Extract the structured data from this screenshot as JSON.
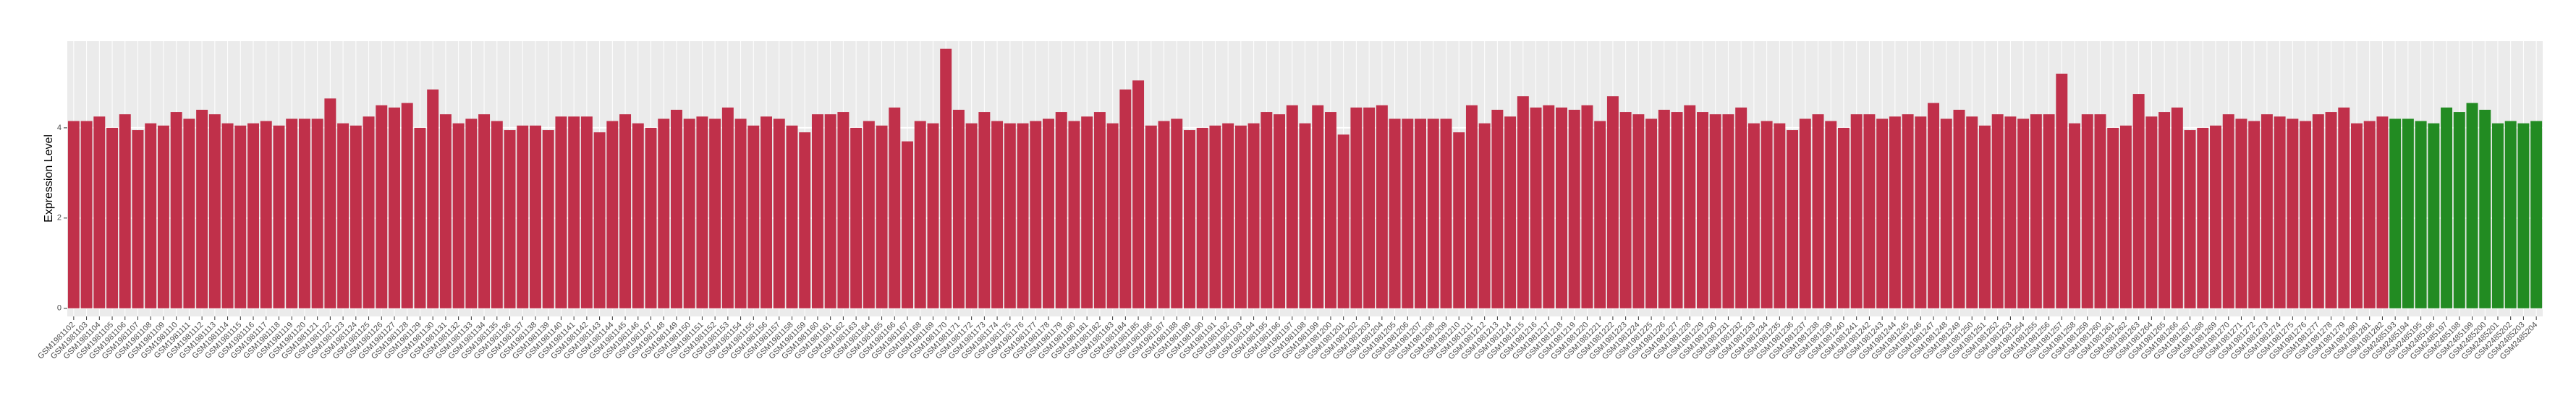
{
  "chart_data": {
    "type": "bar",
    "y_label": "Expression Level",
    "ylim": [
      -0.18,
      5.92
    ],
    "yticks": [
      0,
      2,
      4
    ],
    "grid": true,
    "groups": [
      {
        "color": "#c0304a",
        "categories": [
          "GSM1981102",
          "GSM1981103",
          "GSM1981104",
          "GSM1981105",
          "GSM1981106",
          "GSM1981107",
          "GSM1981108",
          "GSM1981109",
          "GSM1981110",
          "GSM1981111",
          "GSM1981112",
          "GSM1981113",
          "GSM1981114",
          "GSM1981115",
          "GSM1981116",
          "GSM1981117",
          "GSM1981118",
          "GSM1981119",
          "GSM1981120",
          "GSM1981121",
          "GSM1981122",
          "GSM1981123",
          "GSM1981124",
          "GSM1981125",
          "GSM1981126",
          "GSM1981127",
          "GSM1981128",
          "GSM1981129",
          "GSM1981130",
          "GSM1981131",
          "GSM1981132",
          "GSM1981133",
          "GSM1981134",
          "GSM1981135",
          "GSM1981136",
          "GSM1981137",
          "GSM1981138",
          "GSM1981139",
          "GSM1981140",
          "GSM1981141",
          "GSM1981142",
          "GSM1981143",
          "GSM1981144",
          "GSM1981145",
          "GSM1981146",
          "GSM1981147",
          "GSM1981148",
          "GSM1981149",
          "GSM1981150",
          "GSM1981151",
          "GSM1981152",
          "GSM1981153",
          "GSM1981154",
          "GSM1981155",
          "GSM1981156",
          "GSM1981157",
          "GSM1981158",
          "GSM1981159",
          "GSM1981160",
          "GSM1981161",
          "GSM1981162",
          "GSM1981163",
          "GSM1981164",
          "GSM1981165",
          "GSM1981166",
          "GSM1981167",
          "GSM1981168",
          "GSM1981169",
          "GSM1981170",
          "GSM1981171",
          "GSM1981172",
          "GSM1981173",
          "GSM1981174",
          "GSM1981175",
          "GSM1981176",
          "GSM1981177",
          "GSM1981178",
          "GSM1981179",
          "GSM1981180",
          "GSM1981181",
          "GSM1981182",
          "GSM1981183",
          "GSM1981184",
          "GSM1981185",
          "GSM1981186",
          "GSM1981187",
          "GSM1981188",
          "GSM1981189",
          "GSM1981190",
          "GSM1981191",
          "GSM1981192",
          "GSM1981193",
          "GSM1981194",
          "GSM1981195",
          "GSM1981196",
          "GSM1981197",
          "GSM1981198",
          "GSM1981199",
          "GSM1981200",
          "GSM1981201",
          "GSM1981202",
          "GSM1981203",
          "GSM1981204",
          "GSM1981205",
          "GSM1981206",
          "GSM1981207",
          "GSM1981208",
          "GSM1981209",
          "GSM1981210",
          "GSM1981211",
          "GSM1981212",
          "GSM1981213",
          "GSM1981214",
          "GSM1981215",
          "GSM1981216",
          "GSM1981217",
          "GSM1981218",
          "GSM1981219",
          "GSM1981220",
          "GSM1981221",
          "GSM1981222",
          "GSM1981223",
          "GSM1981224",
          "GSM1981225",
          "GSM1981226",
          "GSM1981227",
          "GSM1981228",
          "GSM1981229",
          "GSM1981230",
          "GSM1981231",
          "GSM1981232",
          "GSM1981233",
          "GSM1981234",
          "GSM1981235",
          "GSM1981236",
          "GSM1981237",
          "GSM1981238",
          "GSM1981239",
          "GSM1981240",
          "GSM1981241",
          "GSM1981242",
          "GSM1981243",
          "GSM1981244",
          "GSM1981245",
          "GSM1981246",
          "GSM1981247",
          "GSM1981248",
          "GSM1981249",
          "GSM1981250",
          "GSM1981251",
          "GSM1981252",
          "GSM1981253",
          "GSM1981254",
          "GSM1981255",
          "GSM1981256",
          "GSM1981257",
          "GSM1981258",
          "GSM1981259",
          "GSM1981260",
          "GSM1981261",
          "GSM1981262",
          "GSM1981263",
          "GSM1981264",
          "GSM1981265",
          "GSM1981266",
          "GSM1981267",
          "GSM1981268",
          "GSM1981269",
          "GSM1981270",
          "GSM1981271",
          "GSM1981272",
          "GSM1981273",
          "GSM1981274",
          "GSM1981275",
          "GSM1981276",
          "GSM1981277",
          "GSM1981278",
          "GSM1981279",
          "GSM1981280",
          "GSM1981281",
          "GSM1981282"
        ],
        "values": [
          4.15,
          4.15,
          4.25,
          4.0,
          4.3,
          3.95,
          4.1,
          4.05,
          4.35,
          4.2,
          4.4,
          4.3,
          4.1,
          4.05,
          4.1,
          4.15,
          4.05,
          4.2,
          4.2,
          4.2,
          4.65,
          4.1,
          4.05,
          4.25,
          4.5,
          4.45,
          4.55,
          4.0,
          4.85,
          4.3,
          4.1,
          4.2,
          4.3,
          4.15,
          3.95,
          4.05,
          4.05,
          3.95,
          4.25,
          4.25,
          4.25,
          3.9,
          4.15,
          4.3,
          4.1,
          4.0,
          4.2,
          4.4,
          4.2,
          4.25,
          4.2,
          4.45,
          4.2,
          4.05,
          4.25,
          4.2,
          4.05,
          3.9,
          4.3,
          4.3,
          4.35,
          4.0,
          4.15,
          4.05,
          4.45,
          3.7,
          4.15,
          4.1,
          5.75,
          4.4,
          4.1,
          4.35,
          4.15,
          4.1,
          4.1,
          4.15,
          4.2,
          4.35,
          4.15,
          4.25,
          4.35,
          4.1,
          4.85,
          5.05,
          4.05,
          4.15,
          4.2,
          3.95,
          4.0,
          4.05,
          4.1,
          4.05,
          4.1,
          4.35,
          4.3,
          4.5,
          4.1,
          4.5,
          4.35,
          3.85,
          4.45,
          4.45,
          4.5,
          4.2,
          4.2,
          4.2,
          4.2,
          4.2,
          3.9,
          4.5,
          4.1,
          4.4,
          4.25,
          4.7,
          4.45,
          4.5,
          4.45,
          4.4,
          4.5,
          4.15,
          4.7,
          4.35,
          4.3,
          4.2,
          4.4,
          4.35,
          4.5,
          4.35,
          4.3,
          4.3,
          4.45,
          4.1,
          4.15,
          4.1,
          3.95,
          4.2,
          4.3,
          4.15,
          4.0,
          4.3,
          4.3,
          4.2,
          4.25,
          4.3,
          4.25,
          4.55,
          4.2,
          4.4,
          4.25,
          4.05,
          4.3,
          4.25,
          4.2,
          4.3,
          4.3,
          5.2,
          4.1,
          4.3,
          4.3,
          4.0,
          4.05,
          4.75,
          4.25,
          4.35,
          4.45,
          3.95,
          4.0,
          4.05,
          4.3,
          4.2,
          4.15,
          4.3,
          4.25,
          4.2,
          4.15,
          4.3,
          4.35,
          4.45,
          4.1,
          4.15,
          4.25
        ]
      },
      {
        "color": "#228b22",
        "categories": [
          "GSM2485193",
          "GSM2485194",
          "GSM2485195",
          "GSM2485196",
          "GSM2485197",
          "GSM2485198",
          "GSM2485199",
          "GSM2485200",
          "GSM2485201",
          "GSM2485202",
          "GSM2485203",
          "GSM2485204"
        ],
        "values": [
          4.2,
          4.2,
          4.15,
          4.1,
          4.45,
          4.35,
          4.55,
          4.4,
          4.1,
          4.15,
          4.1,
          4.15
        ]
      }
    ]
  }
}
